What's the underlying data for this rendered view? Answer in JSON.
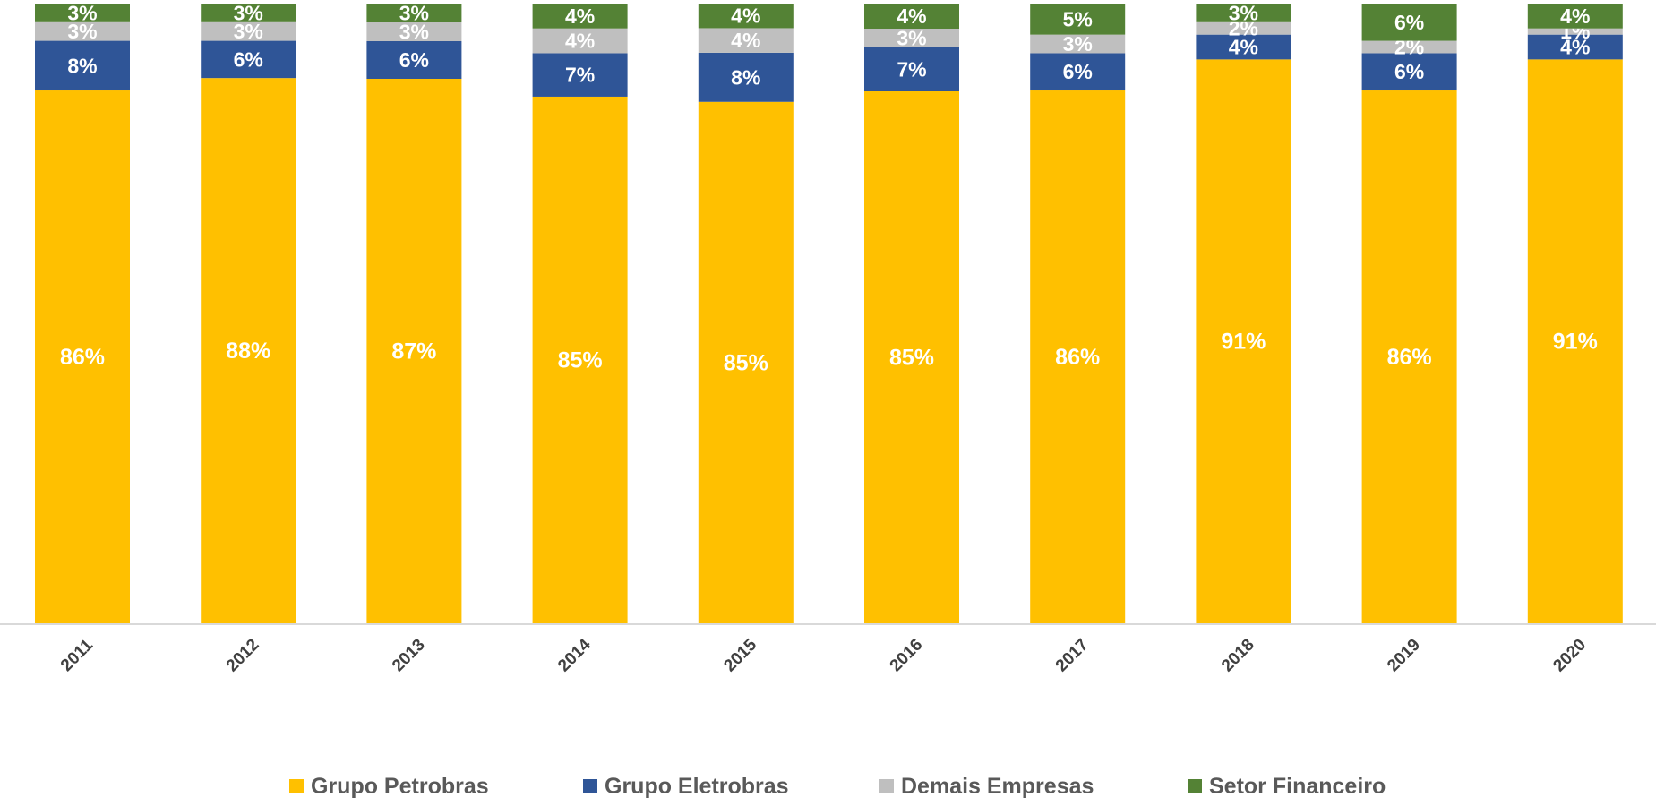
{
  "chart_data": {
    "type": "bar",
    "stacked": true,
    "title": "",
    "xlabel": "",
    "ylabel": "",
    "ylim": [
      0,
      100
    ],
    "categories": [
      "2011",
      "2012",
      "2013",
      "2014",
      "2015",
      "2016",
      "2017",
      "2018",
      "2019",
      "2020"
    ],
    "series": [
      {
        "name": "Grupo Petrobras",
        "color": "#ffc000",
        "values": [
          86,
          88,
          87,
          85,
          85,
          85,
          86,
          91,
          86,
          91
        ],
        "labels": [
          "86%",
          "88%",
          "87%",
          "85%",
          "85%",
          "85%",
          "86%",
          "91%",
          "86%",
          "91%"
        ]
      },
      {
        "name": "Grupo Eletrobras",
        "color": "#2f5597",
        "values": [
          8,
          6,
          6,
          7,
          8,
          7,
          6,
          4,
          6,
          4
        ],
        "labels": [
          "8%",
          "6%",
          "6%",
          "7%",
          "8%",
          "7%",
          "6%",
          "4%",
          "6%",
          "4%"
        ]
      },
      {
        "name": "Demais Empresas",
        "color": "#bfbfbf",
        "values": [
          3,
          3,
          3,
          4,
          4,
          3,
          3,
          2,
          2,
          1
        ],
        "labels": [
          "3%",
          "3%",
          "3%",
          "4%",
          "4%",
          "3%",
          "3%",
          "2%",
          "2%",
          "1%"
        ]
      },
      {
        "name": "Setor Financeiro",
        "color": "#548235",
        "values": [
          3,
          3,
          3,
          4,
          4,
          4,
          5,
          3,
          6,
          4
        ],
        "labels": [
          "3%",
          "3%",
          "3%",
          "4%",
          "4%",
          "4%",
          "5%",
          "3%",
          "6%",
          "4%"
        ]
      }
    ],
    "legend_position": "bottom",
    "grid": false
  }
}
